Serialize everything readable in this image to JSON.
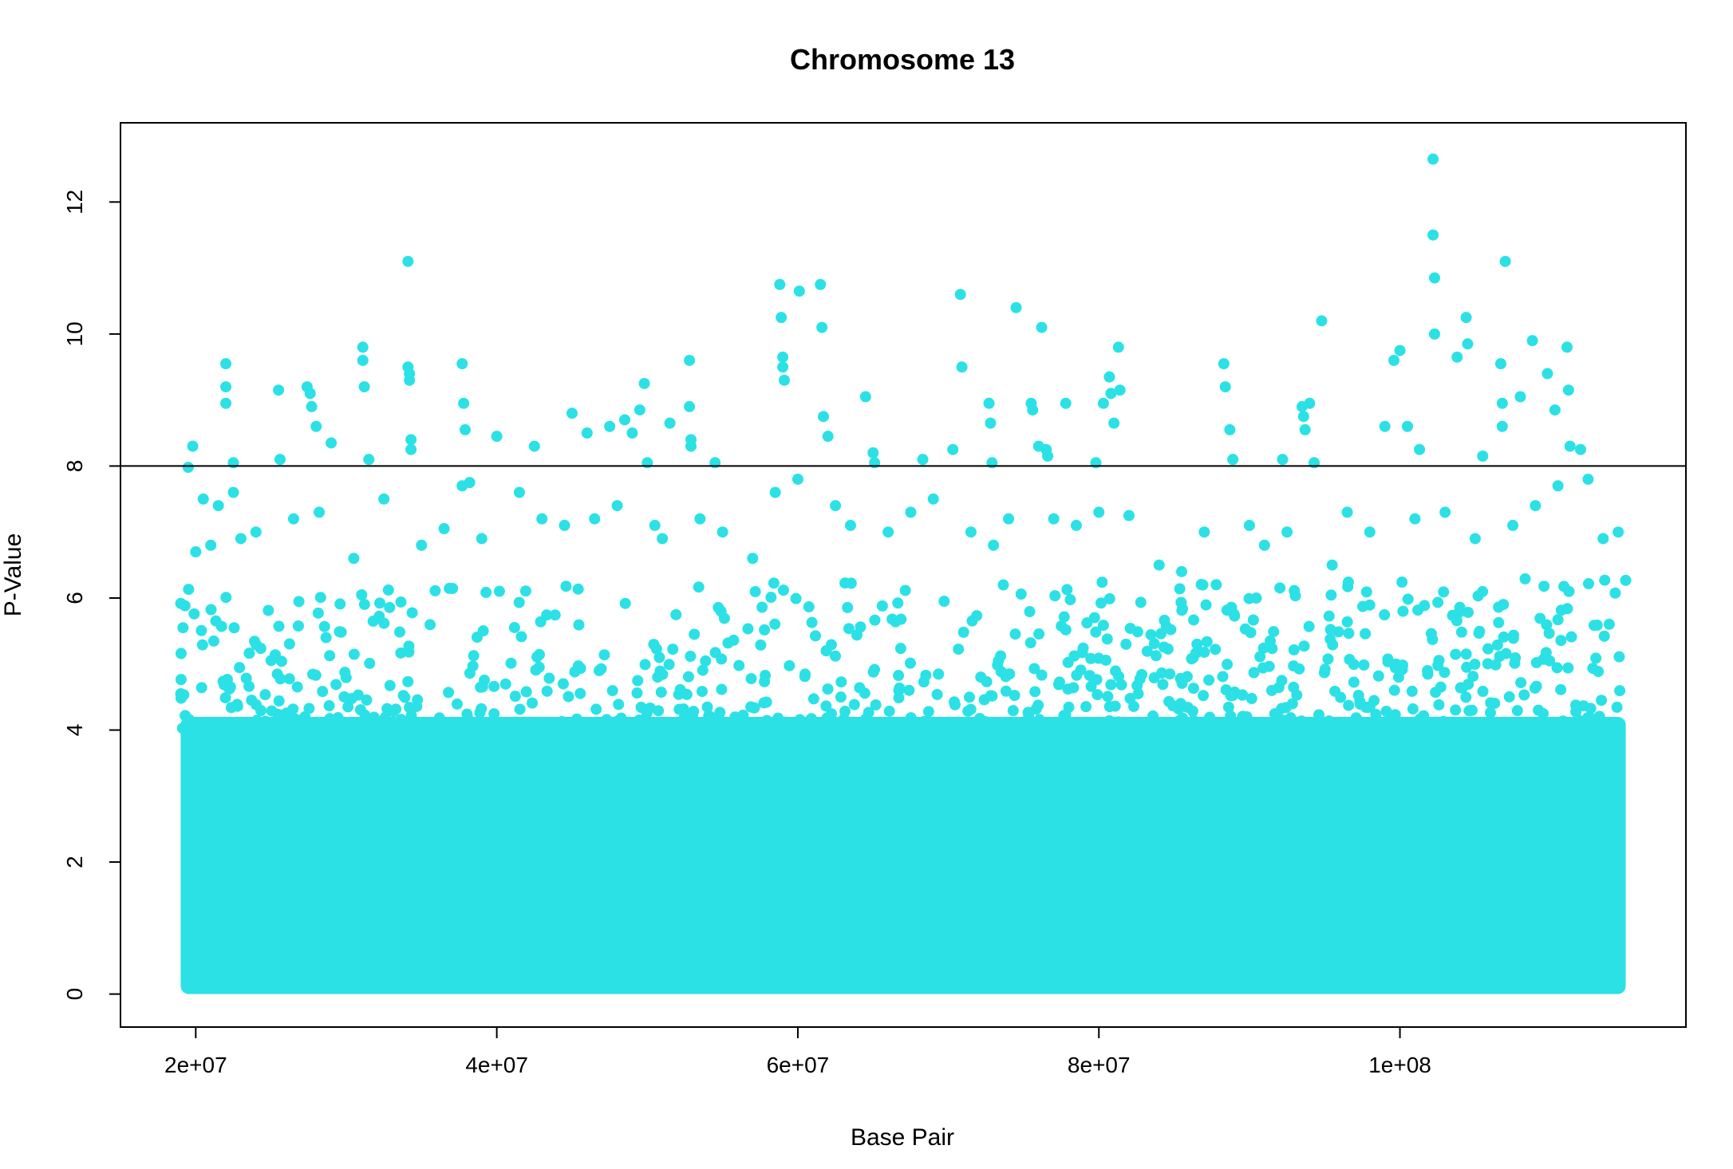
{
  "chart_data": {
    "type": "scatter",
    "title": "Chromosome 13",
    "xlabel": "Base Pair",
    "ylabel": "P-Value",
    "xlim": [
      15000000,
      119000000
    ],
    "ylim": [
      -0.5,
      13.2
    ],
    "x_ticks": [
      20000000,
      40000000,
      60000000,
      80000000,
      100000000
    ],
    "x_tick_labels": [
      "2e+07",
      "4e+07",
      "6e+07",
      "8e+07",
      "1e+08"
    ],
    "y_ticks": [
      0,
      2,
      4,
      6,
      8,
      10,
      12
    ],
    "y_tick_labels": [
      "0",
      "2",
      "4",
      "6",
      "8",
      "10",
      "12"
    ],
    "threshold": 8,
    "point_color": "#2CE1E5",
    "dense_region": {
      "x_range": [
        19000000,
        115000000
      ],
      "y_range": [
        0,
        4.2
      ]
    },
    "series": [
      {
        "x": [
          19500000,
          19800000,
          20500000,
          21000000,
          22000000,
          22000000,
          22000000,
          22500000,
          22500000,
          25500000,
          25600000,
          27400000,
          27600000,
          27700000,
          28000000,
          29000000,
          31100000,
          31100000,
          31200000,
          31500000,
          34100000,
          34100000,
          34200000,
          34200000,
          34300000,
          34300000,
          37700000,
          37800000,
          37900000,
          37700000,
          38200000,
          40000000,
          42500000,
          45000000,
          46000000,
          47500000,
          48500000,
          49000000,
          49500000,
          49800000,
          50000000,
          51500000,
          52800000,
          52800000,
          52900000,
          52900000,
          54500000,
          58800000,
          58900000,
          59000000,
          59000000,
          59100000,
          60100000,
          61500000,
          61600000,
          61700000,
          62000000,
          64500000,
          65000000,
          65100000,
          68300000,
          70300000,
          70800000,
          70900000,
          72700000,
          72800000,
          72900000,
          74500000,
          75500000,
          75600000,
          76000000,
          76200000,
          76500000,
          76600000,
          77800000,
          79800000,
          80300000,
          80700000,
          80800000,
          81000000,
          81300000,
          81400000,
          88300000,
          88400000,
          88700000,
          88900000,
          92200000,
          93500000,
          93600000,
          93700000,
          94000000,
          94300000,
          94800000,
          99000000,
          99600000,
          100000000,
          100500000,
          101300000,
          102200000,
          102200000,
          102300000,
          102300000,
          103800000,
          104400000,
          104500000,
          105500000,
          106700000,
          106800000,
          106800000,
          107000000,
          108000000,
          108800000,
          109800000,
          110300000,
          111100000,
          111200000,
          111300000,
          112000000
        ],
        "y": [
          7.98,
          8.3,
          7.5,
          6.8,
          9.55,
          9.2,
          8.95,
          8.05,
          7.6,
          9.15,
          8.1,
          9.2,
          9.1,
          8.9,
          8.6,
          8.35,
          9.8,
          9.6,
          9.2,
          8.1,
          11.1,
          9.5,
          9.4,
          9.3,
          8.4,
          8.25,
          9.55,
          8.95,
          8.55,
          7.7,
          7.75,
          8.45,
          8.3,
          8.8,
          8.5,
          8.6,
          8.7,
          8.5,
          8.85,
          9.25,
          8.05,
          8.65,
          9.6,
          8.9,
          8.4,
          8.3,
          8.05,
          10.75,
          10.25,
          9.65,
          9.5,
          9.3,
          10.65,
          10.75,
          10.1,
          8.75,
          8.45,
          9.05,
          8.2,
          8.05,
          8.1,
          8.25,
          10.6,
          9.5,
          8.95,
          8.65,
          8.05,
          10.4,
          8.95,
          8.85,
          8.3,
          10.1,
          8.25,
          8.15,
          8.95,
          8.05,
          8.95,
          9.35,
          9.1,
          8.65,
          9.8,
          9.15,
          9.55,
          9.2,
          8.55,
          8.1,
          8.1,
          8.9,
          8.75,
          8.55,
          8.95,
          8.05,
          10.2,
          8.6,
          9.6,
          9.75,
          8.6,
          8.25,
          12.65,
          11.5,
          10.85,
          10.0,
          9.65,
          10.25,
          9.85,
          8.15,
          9.55,
          8.95,
          8.6,
          11.1,
          9.05,
          9.9,
          9.4,
          8.85,
          9.8,
          9.15,
          8.3,
          8.25
        ]
      },
      {
        "x": [
          20000000,
          21500000,
          23000000,
          24000000,
          26500000,
          28200000,
          30500000,
          32500000,
          35000000,
          36500000,
          39000000,
          41500000,
          43000000,
          44500000,
          46500000,
          48000000,
          50500000,
          51000000,
          53500000,
          55000000,
          57000000,
          58500000,
          60000000,
          62500000,
          63500000,
          66000000,
          67500000,
          69000000,
          71500000,
          73000000,
          74000000,
          77000000,
          78500000,
          80000000,
          82000000,
          84000000,
          85500000,
          87000000,
          90000000,
          91000000,
          92500000,
          95500000,
          96500000,
          98000000,
          101000000,
          103000000,
          105000000,
          107500000,
          109000000,
          110500000,
          112500000,
          113500000,
          114500000
        ],
        "y": [
          6.7,
          7.4,
          6.9,
          7.0,
          7.2,
          7.3,
          6.6,
          7.5,
          6.8,
          7.05,
          6.9,
          7.6,
          7.2,
          7.1,
          7.2,
          7.4,
          7.1,
          6.9,
          7.2,
          7.0,
          6.6,
          7.6,
          7.8,
          7.4,
          7.1,
          7.0,
          7.3,
          7.5,
          7.0,
          6.8,
          7.2,
          7.2,
          7.1,
          7.3,
          7.25,
          6.5,
          6.4,
          7.0,
          7.1,
          6.8,
          7.0,
          6.5,
          7.3,
          7.0,
          7.2,
          7.3,
          6.9,
          7.1,
          7.4,
          7.7,
          7.8,
          6.9,
          7.0
        ]
      }
    ]
  }
}
